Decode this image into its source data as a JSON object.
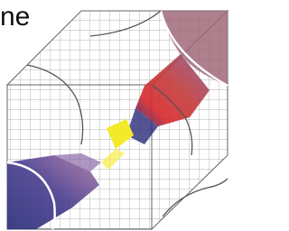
{
  "label": "ne"
}
